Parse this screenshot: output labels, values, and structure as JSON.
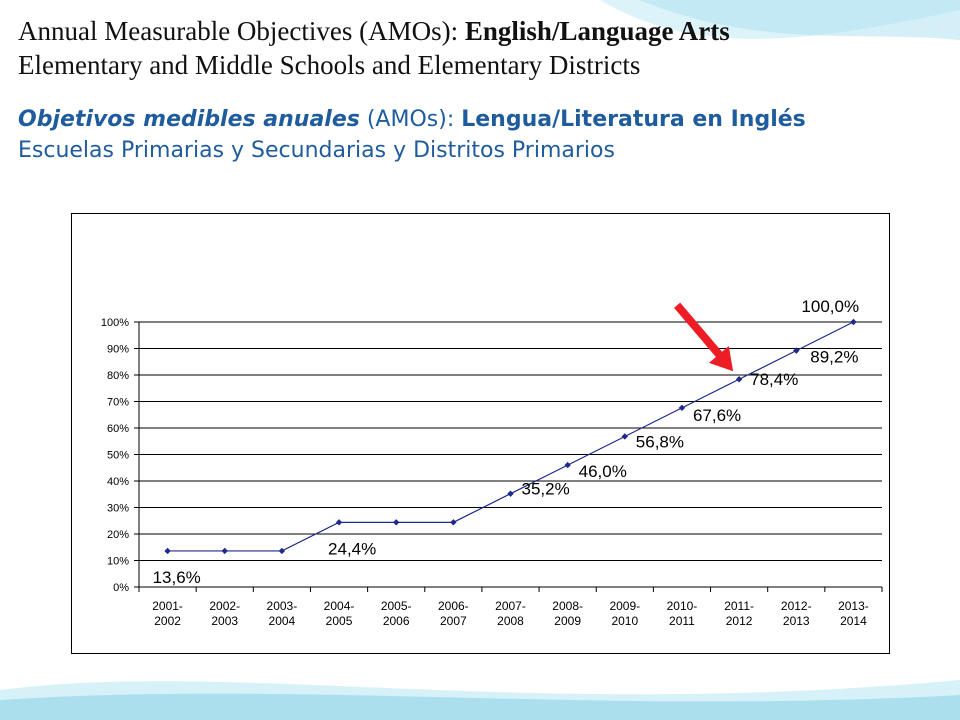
{
  "slide": {
    "title_en_line1_part1": "Annual Measurable Objectives (AMOs): ",
    "title_en_line1_part2": "English/Language Arts",
    "title_en_line2": "Elementary and Middle Schools and Elementary Districts",
    "title_es_line1_part1": "Objetivos medibles anuales",
    "title_es_line1_part2": " (AMOs): ",
    "title_es_line1_part3": "Lengua/Literatura en Inglés",
    "title_es_line2": "Escuelas Primarias y Secundarias y Distritos Primarios"
  },
  "colors": {
    "series": "#1f2a8c",
    "arrow": "#ee1c24",
    "spanish_text": "#1f5c9e",
    "background_wave": "#8fd3e6"
  },
  "chart_data": {
    "type": "line",
    "title": "",
    "xlabel": "",
    "ylabel": "",
    "ylim": [
      0,
      100
    ],
    "yticks": [
      "0%",
      "10%",
      "20%",
      "30%",
      "40%",
      "50%",
      "60%",
      "70%",
      "80%",
      "90%",
      "100%"
    ],
    "grid": true,
    "legend": "none",
    "categories": [
      [
        "2001-",
        "2002"
      ],
      [
        "2002-",
        "2003"
      ],
      [
        "2003-",
        "2004"
      ],
      [
        "2004-",
        "2005"
      ],
      [
        "2005-",
        "2006"
      ],
      [
        "2006-",
        "2007"
      ],
      [
        "2007-",
        "2008"
      ],
      [
        "2008-",
        "2009"
      ],
      [
        "2009-",
        "2010"
      ],
      [
        "2010-",
        "2011"
      ],
      [
        "2011-",
        "2012"
      ],
      [
        "2012-",
        "2013"
      ],
      [
        "2013-",
        "2014"
      ]
    ],
    "series": [
      {
        "values": [
          13.6,
          13.6,
          13.6,
          24.4,
          24.4,
          24.4,
          35.2,
          46.0,
          56.8,
          67.6,
          78.4,
          89.2,
          100.0
        ]
      }
    ],
    "data_labels": [
      {
        "index": 0,
        "text": "13,6%"
      },
      {
        "index": 3,
        "text": "24,4%"
      },
      {
        "index": 6,
        "text": "35,2%"
      },
      {
        "index": 7,
        "text": "46,0%"
      },
      {
        "index": 8,
        "text": "56,8%"
      },
      {
        "index": 9,
        "text": "67,6%"
      },
      {
        "index": 10,
        "text": "78,4%"
      },
      {
        "index": 11,
        "text": "89,2%"
      },
      {
        "index": 12,
        "text": "100,0%"
      }
    ],
    "annotation": {
      "type": "arrow",
      "points_to_index": 10
    }
  }
}
